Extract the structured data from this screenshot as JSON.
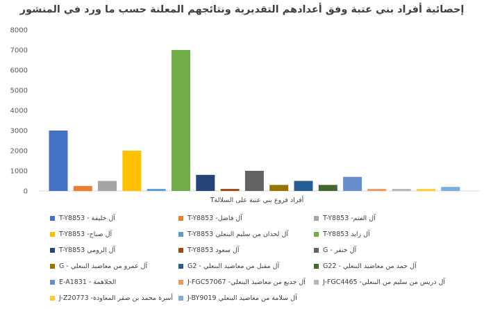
{
  "chart_data": {
    "type": "bar",
    "title": "إحصائية أفراد بني عتبة وفق أعدادهم التقديرية ونتائجهم المعلنة حسب ما ورد في المنشور",
    "xlabel": "أفراد فروع بني عتبة على السلالةT",
    "ylabel": "",
    "ylim": [
      0,
      8000
    ],
    "yticks": [
      0,
      1000,
      2000,
      3000,
      4000,
      5000,
      6000,
      7000,
      8000
    ],
    "grid": false,
    "legend": "bottom",
    "series": [
      {
        "name": "آل خليفة - T-Y8853",
        "value": 3000,
        "color": "#4472C4"
      },
      {
        "name": "آل فاضل- T-Y8853",
        "value": 250,
        "color": "#ED7D31"
      },
      {
        "name": "آل الفتم- T-Y8853",
        "value": 500,
        "color": "#A5A5A5"
      },
      {
        "name": "آل صباح- T-Y8853",
        "value": 2000,
        "color": "#FFC000"
      },
      {
        "name": "آل لحدان من سليم البنعلي T-Y8853",
        "value": 100,
        "color": "#5B9BD5"
      },
      {
        "name": "آل زايد T-Y8853",
        "value": 7000,
        "color": "#70AD47"
      },
      {
        "name": "آل الرومي T-Y8853",
        "value": 800,
        "color": "#264478"
      },
      {
        "name": "آل سعود T-Y8853",
        "value": 100,
        "color": "#9E480E"
      },
      {
        "name": "آل خنفر - G",
        "value": 1000,
        "color": "#636363"
      },
      {
        "name": "آل عمرو من معاضيد البنعلي - G",
        "value": 300,
        "color": "#997300"
      },
      {
        "name": "آل مقبل من معاضيد البنعلي - G2",
        "value": 500,
        "color": "#255E91"
      },
      {
        "name": "آل حمد من معاضيد البنعلي - G22",
        "value": 300,
        "color": "#43682B"
      },
      {
        "name": "الجلاهمة - E-A1831",
        "value": 700,
        "color": "#698ED0"
      },
      {
        "name": "آل جديع من معاضيد البنعلي- J-FGC57067",
        "value": 100,
        "color": "#F1975A"
      },
      {
        "name": "آل دريس من سليم من البنعلي- J-FGC4465",
        "value": 100,
        "color": "#B7B7B7"
      },
      {
        "name": "أسرة محمد بن صقر المعاودة- J-Z20773",
        "value": 100,
        "color": "#FFCD33"
      },
      {
        "name": "آل سلامة من معاضيد البنعلي J-BY9019",
        "value": 200,
        "color": "#7CAFDD"
      }
    ]
  }
}
